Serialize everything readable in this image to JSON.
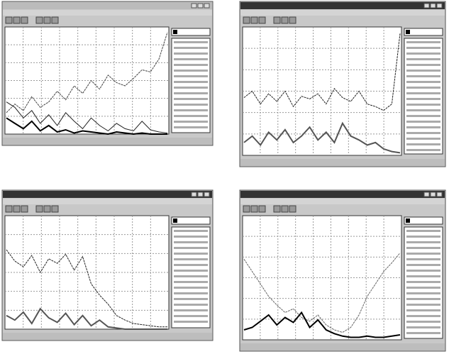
{
  "windows": [
    {
      "ylim": [
        0,
        100
      ],
      "series": [
        {
          "color": "#444444",
          "values": [
            20,
            28,
            22,
            35,
            25,
            30,
            40,
            32,
            45,
            38,
            50,
            42,
            55,
            48,
            45,
            52,
            60,
            58,
            70,
            95
          ]
        },
        {
          "color": "#222222",
          "values": [
            30,
            25,
            15,
            22,
            10,
            18,
            8,
            20,
            12,
            5,
            15,
            8,
            3,
            10,
            5,
            3,
            12,
            4,
            2,
            1
          ]
        },
        {
          "color": "#000000",
          "values": [
            15,
            10,
            5,
            12,
            3,
            8,
            2,
            4,
            1,
            3,
            2,
            1,
            0,
            2,
            1,
            0,
            1,
            0,
            0,
            0
          ]
        }
      ]
    },
    {
      "ylim": [
        0,
        100
      ],
      "series": [
        {
          "color": "#222222",
          "values": [
            45,
            50,
            40,
            48,
            42,
            50,
            38,
            46,
            44,
            48,
            40,
            52,
            45,
            42,
            50,
            40,
            38,
            35,
            40,
            95
          ]
        },
        {
          "color": "#555555",
          "values": [
            10,
            15,
            8,
            18,
            12,
            20,
            10,
            15,
            22,
            12,
            18,
            10,
            25,
            15,
            12,
            8,
            10,
            5,
            3,
            2
          ]
        }
      ]
    },
    {
      "ylim": [
        0,
        100
      ],
      "series": [
        {
          "color": "#222222",
          "values": [
            70,
            60,
            55,
            65,
            50,
            62,
            58,
            66,
            52,
            64,
            40,
            30,
            22,
            12,
            8,
            5,
            4,
            3,
            2,
            2
          ]
        },
        {
          "color": "#555555",
          "values": [
            12,
            8,
            15,
            5,
            18,
            10,
            6,
            14,
            4,
            12,
            3,
            8,
            2,
            1,
            0,
            0,
            0,
            0,
            0,
            0
          ]
        }
      ]
    },
    {
      "ylim": [
        0,
        100
      ],
      "series": [
        {
          "color": "#666666",
          "values": [
            65,
            55,
            45,
            35,
            28,
            22,
            25,
            18,
            15,
            20,
            12,
            8,
            6,
            10,
            20,
            35,
            45,
            55,
            62,
            70
          ]
        },
        {
          "color": "#000000",
          "values": [
            8,
            10,
            15,
            20,
            12,
            18,
            14,
            22,
            10,
            16,
            8,
            5,
            3,
            2,
            2,
            3,
            2,
            2,
            3,
            4
          ]
        }
      ]
    }
  ]
}
